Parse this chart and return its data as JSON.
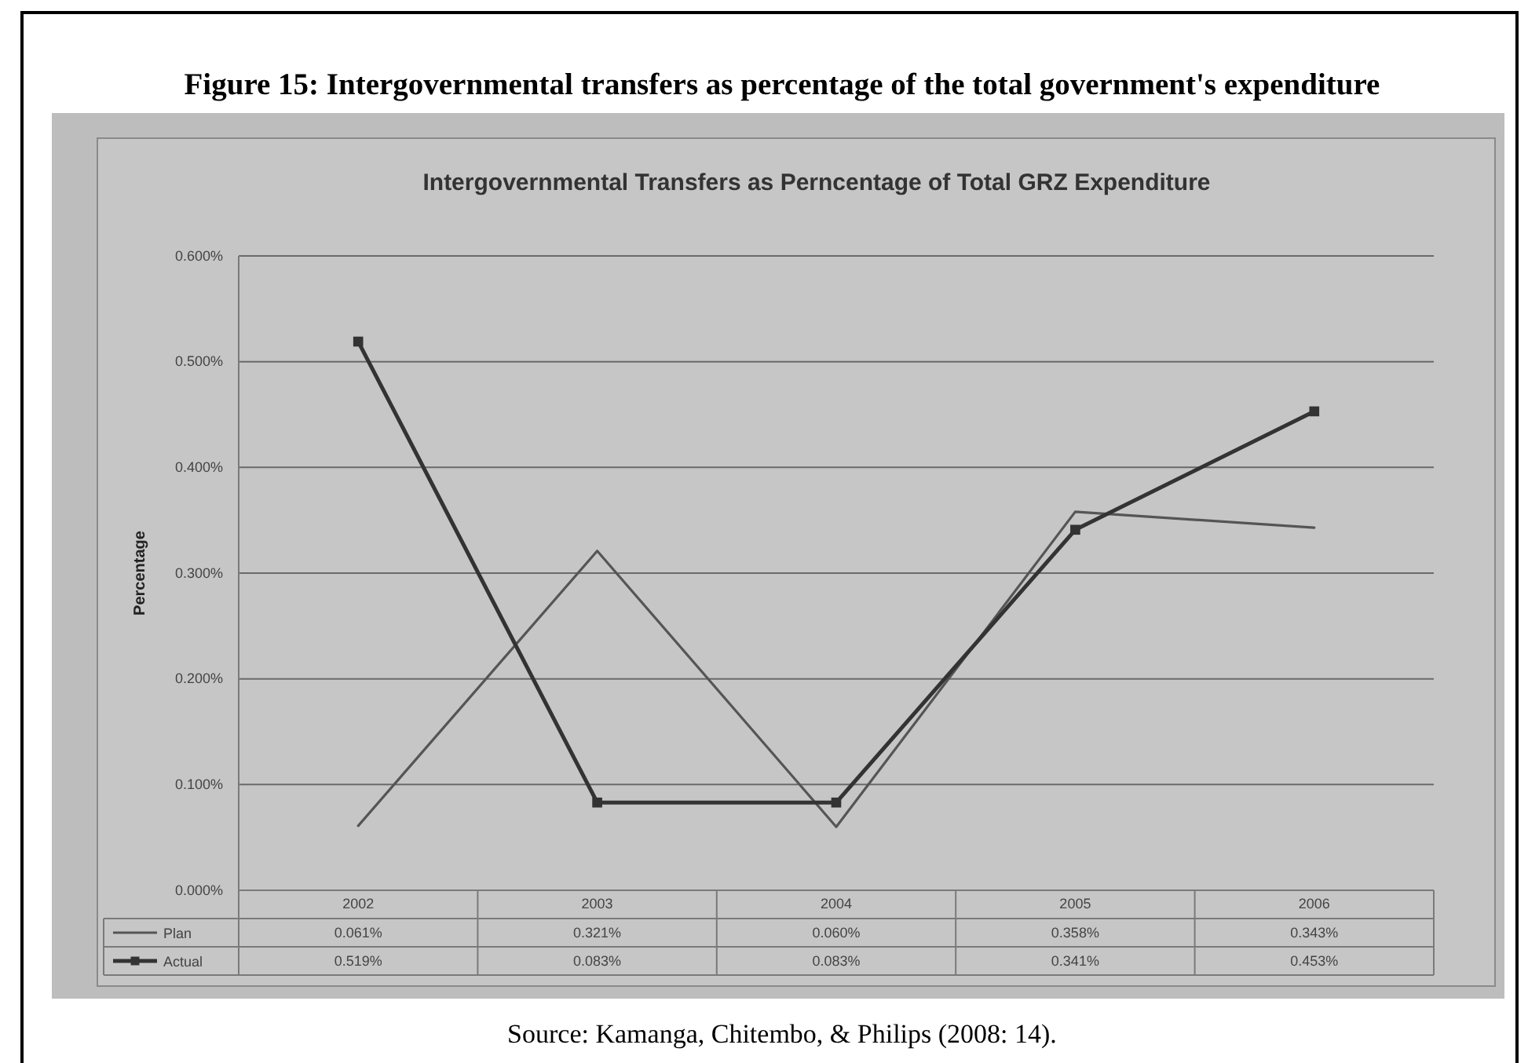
{
  "chart_data": {
    "type": "line",
    "title": "Figure 15: Intergovernmental transfers as percentage of the total government's expenditure",
    "subtitle": "Intergovernmental Transfers as Perncentage of Total GRZ Expenditure",
    "ylabel": "Percentage",
    "annotations": [
      "Source: Kamanga, Chitembo, & Philips (2008: 14)."
    ],
    "categories": [
      "2002",
      "2003",
      "2004",
      "2005",
      "2006"
    ],
    "series": [
      {
        "name": "Plan",
        "color": "#555555",
        "marker": "none",
        "values": [
          0.061,
          0.321,
          0.06,
          0.358,
          0.343
        ],
        "value_labels": [
          "0.061%",
          "0.321%",
          "0.060%",
          "0.358%",
          "0.343%"
        ]
      },
      {
        "name": "Actual",
        "color": "#333333",
        "marker": "square",
        "values": [
          0.519,
          0.083,
          0.083,
          0.341,
          0.453
        ],
        "value_labels": [
          "0.519%",
          "0.083%",
          "0.083%",
          "0.341%",
          "0.453%"
        ]
      }
    ],
    "ylim": [
      0,
      0.6
    ],
    "yticks": [
      {
        "value": 0,
        "label": "0.000%"
      },
      {
        "value": 0.1,
        "label": "0.100%"
      },
      {
        "value": 0.2,
        "label": "0.200%"
      },
      {
        "value": 0.3,
        "label": "0.300%"
      },
      {
        "value": 0.4,
        "label": "0.400%"
      },
      {
        "value": 0.5,
        "label": "0.500%"
      },
      {
        "value": 0.6,
        "label": "0.600%"
      }
    ],
    "grid": "y",
    "legend": "bottom"
  }
}
